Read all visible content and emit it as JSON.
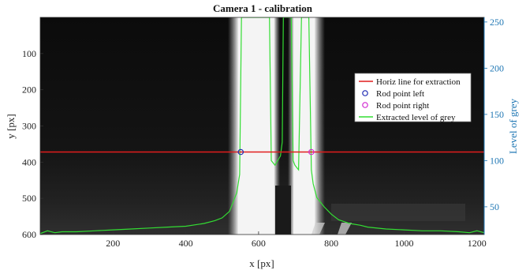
{
  "chart_data": {
    "type": "line",
    "title": "Camera 1 - calibration",
    "xlabel": "x [px]",
    "ylabel": "y [px]",
    "ylabel_right": "Level of grey",
    "xlim": [
      0,
      1220
    ],
    "ylim": [
      600,
      0
    ],
    "ylim_right": [
      20,
      255
    ],
    "x_ticks": [
      200,
      400,
      600,
      800,
      1000,
      1200
    ],
    "y_ticks": [
      100,
      200,
      300,
      400,
      500,
      600
    ],
    "y_ticks_right": [
      50,
      100,
      150,
      200,
      250
    ],
    "background": "grayscale camera image",
    "legend_position": "right",
    "colors": {
      "horiz_line": "#e11d1d",
      "rod_left": "#1f2bb4",
      "rod_right": "#d12ad1",
      "grey_level": "#33dd33",
      "right_axis": "#1f77b4"
    },
    "series": [
      {
        "name": "Horiz line for extraction",
        "kind": "hline",
        "y": 372
      },
      {
        "name": "Rod point left",
        "kind": "marker",
        "points": [
          [
            551,
            372
          ]
        ]
      },
      {
        "name": "Rod point right",
        "kind": "marker",
        "points": [
          [
            745,
            372
          ]
        ]
      },
      {
        "name": "Extracted level of grey",
        "kind": "line",
        "axis": "right",
        "x": [
          0,
          20,
          40,
          60,
          100,
          150,
          200,
          250,
          300,
          350,
          400,
          450,
          480,
          500,
          520,
          530,
          540,
          548,
          553,
          558,
          580,
          610,
          620,
          630,
          635,
          645,
          660,
          665,
          668,
          675,
          680,
          690,
          695,
          700,
          710,
          718,
          738,
          745,
          750,
          760,
          780,
          800,
          820,
          850,
          880,
          900,
          950,
          1000,
          1050,
          1100,
          1150,
          1180,
          1200,
          1220
        ],
        "y": [
          21,
          24,
          22,
          23,
          23,
          24,
          25,
          26,
          27,
          28,
          29,
          32,
          35,
          38,
          45,
          55,
          65,
          85,
          255,
          255,
          255,
          255,
          255,
          255,
          100,
          95,
          105,
          120,
          255,
          255,
          255,
          255,
          100,
          95,
          90,
          255,
          255,
          90,
          75,
          60,
          50,
          42,
          36,
          32,
          30,
          28,
          26,
          25,
          24,
          24,
          23,
          22,
          24,
          22
        ]
      }
    ]
  }
}
